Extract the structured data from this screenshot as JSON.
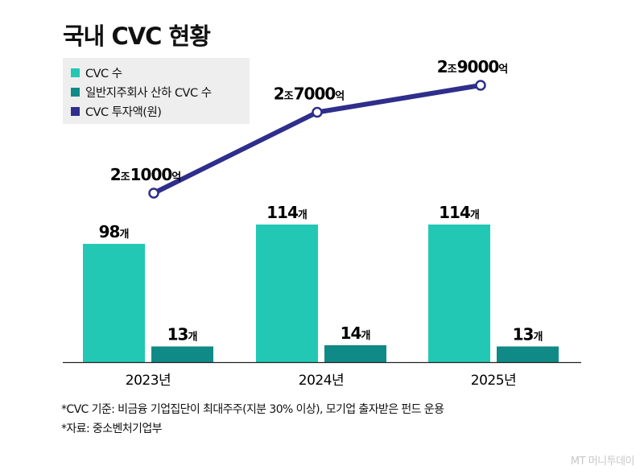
{
  "title": "국내 CVC 현황",
  "legend": [
    {
      "label": "CVC 수",
      "color": "#22c8b4"
    },
    {
      "label": "일반지주회사 산하 CVC 수",
      "color": "#108a86"
    },
    {
      "label": "CVC 투자액(원)",
      "color": "#2e2e8c"
    }
  ],
  "chart_data": {
    "type": "bar",
    "categories": [
      "2023년",
      "2024년",
      "2025년"
    ],
    "series": [
      {
        "name": "CVC 수",
        "type": "bar",
        "values": [
          98,
          114,
          114
        ],
        "unit": "개",
        "color": "#22c8b4"
      },
      {
        "name": "일반지주회사 산하 CVC 수",
        "type": "bar",
        "values": [
          13,
          14,
          13
        ],
        "unit": "개",
        "color": "#108a86"
      },
      {
        "name": "CVC 투자액(원)",
        "type": "line",
        "values": [
          21000,
          27000,
          29000
        ],
        "unit": "억",
        "color": "#2e2e8c",
        "labels": [
          {
            "big1": "2",
            "small1": "조",
            "big2": "1000",
            "small2": "억"
          },
          {
            "big1": "2",
            "small1": "조",
            "big2": "7000",
            "small2": "억"
          },
          {
            "big1": "2",
            "small1": "조",
            "big2": "9000",
            "small2": "억"
          }
        ]
      }
    ]
  },
  "notes": [
    "*CVC 기준: 비금융 기업집단이 최대주주(지분 30% 이상), 모기업 출자받은 펀드 운용",
    "*자료: 중소벤처기업부"
  ],
  "watermark": "MT 머니투데이"
}
